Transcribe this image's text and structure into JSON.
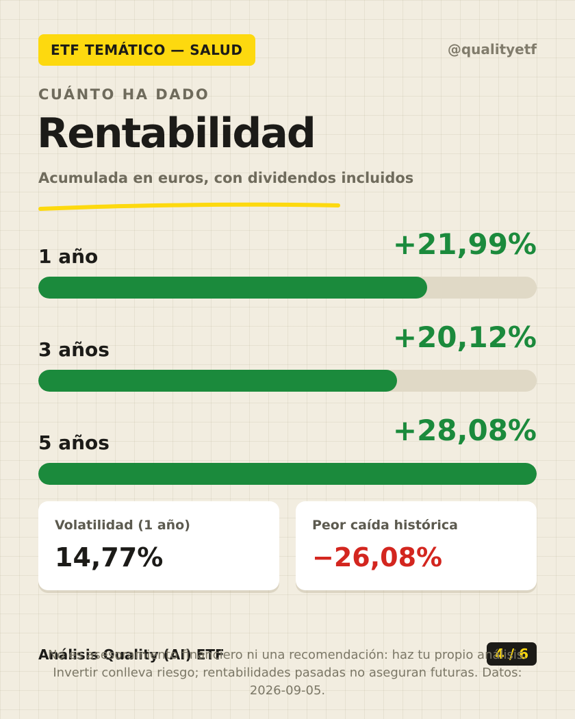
{
  "header": {
    "badge": "ETF TEMÁTICO — SALUD",
    "handle": "@qualityetf"
  },
  "eyebrow": "CUÁNTO HA DADO",
  "title": "Rentabilidad",
  "subtitle": "Acumulada en euros, con dividendos incluidos",
  "colors": {
    "accent_yellow": "#fdd90f",
    "positive_green": "#1b8a3c",
    "negative_red": "#d3261f",
    "track": "#e0d9c6",
    "background": "#f2ede0"
  },
  "returns": [
    {
      "label": "1 año",
      "value": "+21,99%",
      "fill_fraction": 0.78
    },
    {
      "label": "3 años",
      "value": "+20,12%",
      "fill_fraction": 0.72
    },
    {
      "label": "5 años",
      "value": "+28,08%",
      "fill_fraction": 1.0
    }
  ],
  "metrics": [
    {
      "label": "Volatilidad (1 año)",
      "value": "14,77%"
    },
    {
      "label": "Peor caída histórica",
      "value": "−26,08%"
    }
  ],
  "footer": {
    "brand": "Análisis Quality (AI) ETF",
    "page": "4 / 6",
    "disclaimer_line1": "No es asesoramiento financiero ni una recomendación: haz tu propio análisis.",
    "disclaimer_line2": "Invertir conlleva riesgo; rentabilidades pasadas no aseguran futuras. Datos: 2026-09-05."
  }
}
